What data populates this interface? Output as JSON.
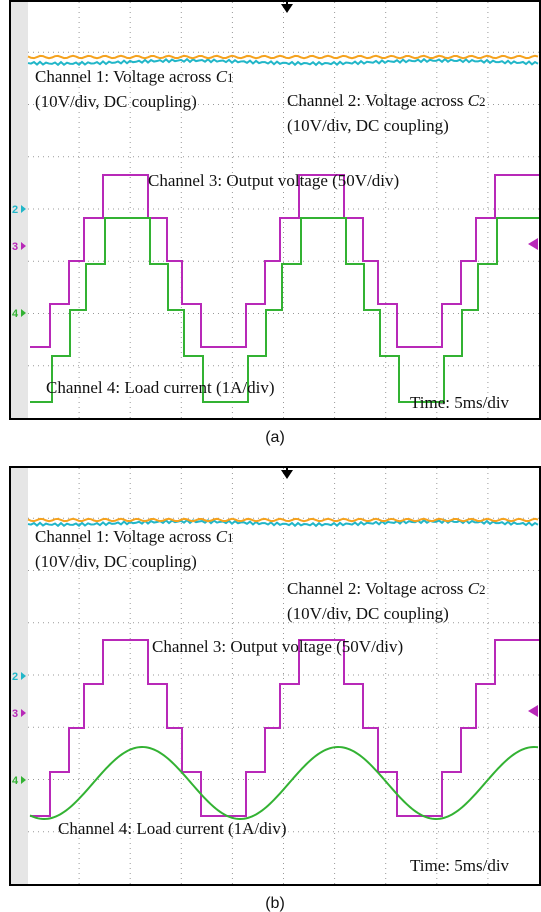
{
  "panels": [
    {
      "caption": "(a)",
      "channel1": {
        "text": "Channel 1: Voltage across ",
        "symbol": "C",
        "subscript": "1",
        "detail": "(10V/div, DC coupling)"
      },
      "channel2": {
        "text": "Channel 2: Voltage across ",
        "symbol": "C",
        "subscript": "2",
        "detail": "(10V/div, DC coupling)"
      },
      "channel3": "Channel 3: Output voltage (50V/div)",
      "channel4": "Channel 4: Load current (1A/div)",
      "time": "Time: 5ms/div",
      "markers": [
        "2",
        "3",
        "4"
      ]
    },
    {
      "caption": "(b)",
      "channel1": {
        "text": "Channel 1: Voltage across ",
        "symbol": "C",
        "subscript": "1",
        "detail": "(10V/div, DC coupling)"
      },
      "channel2": {
        "text": "Channel 2: Voltage across ",
        "symbol": "C",
        "subscript": "2",
        "detail": "(10V/div, DC coupling)"
      },
      "channel3": "Channel 3: Output voltage (50V/div)",
      "channel4": "Channel 4: Load current (1A/div)",
      "time": "Time: 5ms/div",
      "markers": [
        "2",
        "3",
        "4"
      ]
    }
  ]
}
